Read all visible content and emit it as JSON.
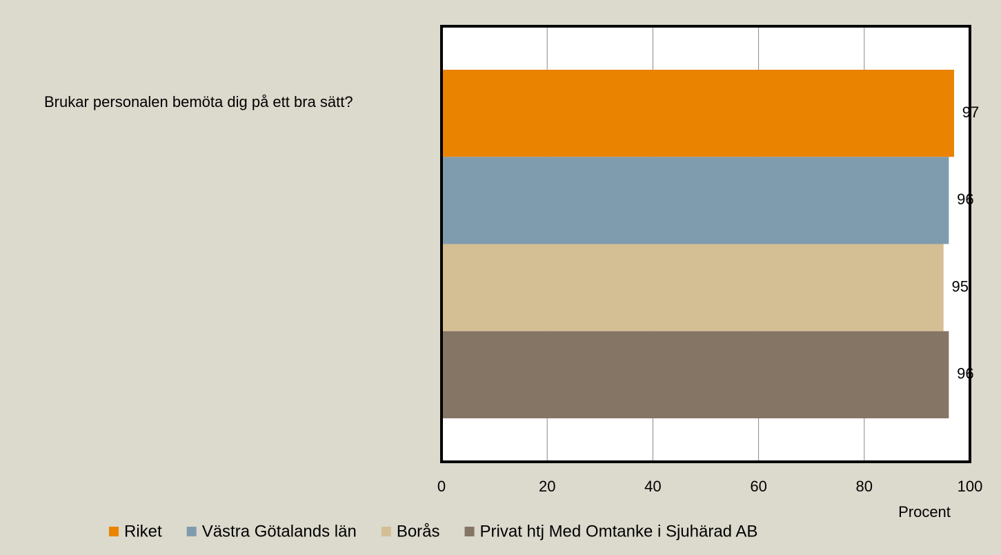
{
  "chart_data": {
    "type": "hbar",
    "categories": [
      "Brukar personalen bemöta dig på ett bra sätt?"
    ],
    "series": [
      {
        "name": "Riket",
        "color": "#e98300",
        "values": [
          97
        ]
      },
      {
        "name": "Västra Götalands län",
        "color": "#7f9bae",
        "values": [
          96
        ]
      },
      {
        "name": "Borås",
        "color": "#d4bf94",
        "values": [
          95
        ]
      },
      {
        "name": "Privat htj Med Omtanke i Sjuhärad AB",
        "color": "#857565",
        "values": [
          96
        ]
      }
    ],
    "xlabel": "Procent",
    "xlim": [
      0,
      100
    ],
    "xticks": [
      0,
      20,
      40,
      60,
      80,
      100
    ],
    "grid": true,
    "legend": "bottom"
  }
}
